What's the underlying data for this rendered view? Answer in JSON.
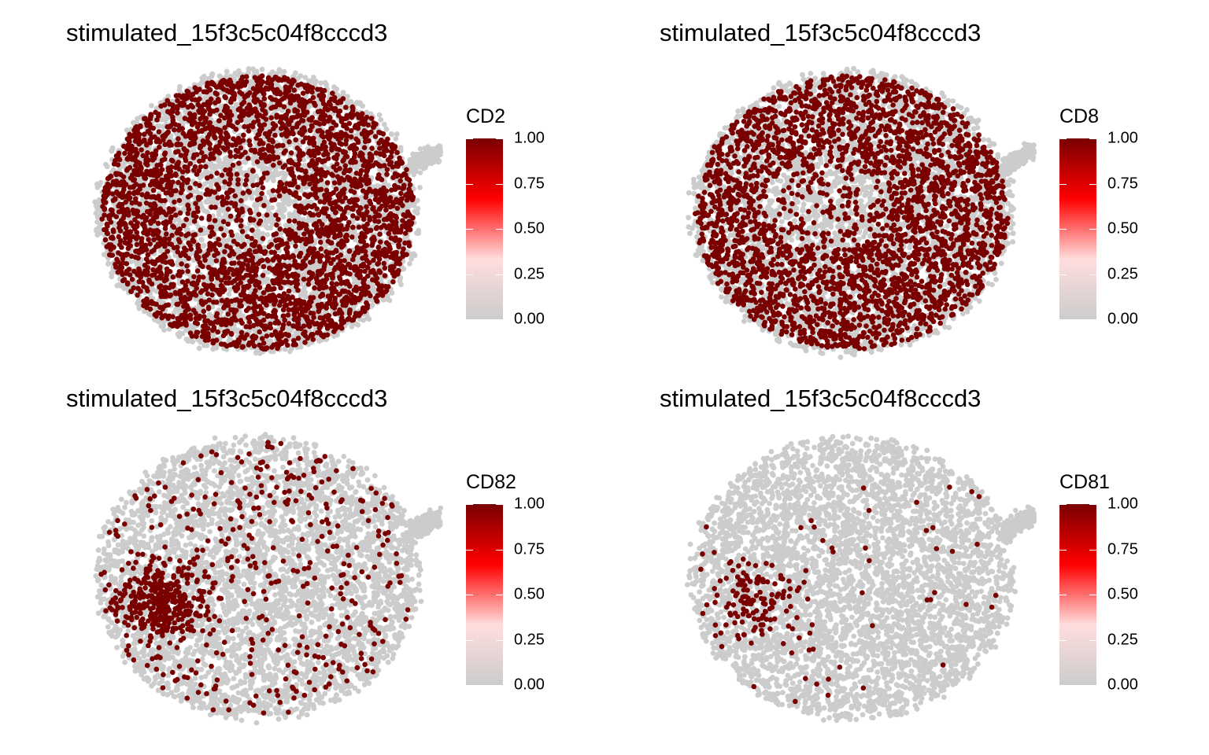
{
  "chart_data": [
    {
      "type": "scatter",
      "title": "stimulated_15f3c5c04f8cccd3",
      "legend": {
        "title": "CD2",
        "ticks": [
          "0.00",
          "0.25",
          "0.50",
          "0.75",
          "1.00"
        ],
        "placement": "right"
      },
      "color_scale": {
        "min": 0.0,
        "max": 1.0,
        "colors": [
          "#cccccc",
          "#ffdddd",
          "#ff0000",
          "#7a0000"
        ]
      },
      "expression_fraction": 0.55,
      "pattern": "dense"
    },
    {
      "type": "scatter",
      "title": "stimulated_15f3c5c04f8cccd3",
      "legend": {
        "title": "CD8",
        "ticks": [
          "0.00",
          "0.25",
          "0.50",
          "0.75",
          "1.00"
        ],
        "placement": "right"
      },
      "color_scale": {
        "min": 0.0,
        "max": 1.0,
        "colors": [
          "#cccccc",
          "#ffdddd",
          "#ff0000",
          "#7a0000"
        ]
      },
      "expression_fraction": 0.5,
      "pattern": "dense"
    },
    {
      "type": "scatter",
      "title": "stimulated_15f3c5c04f8cccd3",
      "legend": {
        "title": "CD82",
        "ticks": [
          "0.00",
          "0.25",
          "0.50",
          "0.75",
          "1.00"
        ],
        "placement": "right"
      },
      "color_scale": {
        "min": 0.0,
        "max": 1.0,
        "colors": [
          "#cccccc",
          "#ffdddd",
          "#ff0000",
          "#7a0000"
        ]
      },
      "expression_fraction": 0.12,
      "pattern": "cluster-left"
    },
    {
      "type": "scatter",
      "title": "stimulated_15f3c5c04f8cccd3",
      "legend": {
        "title": "CD81",
        "ticks": [
          "0.00",
          "0.25",
          "0.50",
          "0.75",
          "1.00"
        ],
        "placement": "right"
      },
      "color_scale": {
        "min": 0.0,
        "max": 1.0,
        "colors": [
          "#cccccc",
          "#ffdddd",
          "#ff0000",
          "#7a0000"
        ]
      },
      "expression_fraction": 0.03,
      "pattern": "cluster-left-sparse"
    }
  ]
}
